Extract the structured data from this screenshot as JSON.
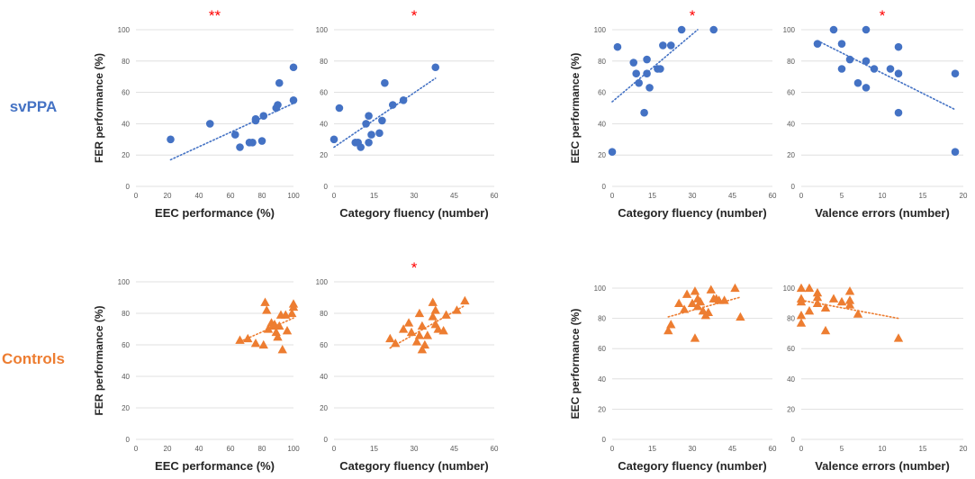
{
  "row_labels": [
    {
      "text": "svPPA",
      "color": "#4472c4"
    },
    {
      "text": "Controls",
      "color": "#ed7d31"
    }
  ],
  "colors": {
    "svPPA": "#4472c4",
    "Controls": "#ed7d31",
    "significance": "#ff0000",
    "grid": "#d9d9d9"
  },
  "chart_data": [
    {
      "type": "scatter",
      "group": "svPPA",
      "marker": "circle",
      "significance": "**",
      "xlabel": "EEC performance (%)",
      "ylabel": "FER performance (%)",
      "xlim": [
        0,
        100
      ],
      "xticks": [
        "0",
        "20",
        "40",
        "60",
        "80",
        "100"
      ],
      "ylim": [
        0,
        100
      ],
      "yticks": [
        "0",
        "20",
        "40",
        "60",
        "80",
        "100"
      ],
      "trendline": [
        [
          22,
          17
        ],
        [
          100,
          53
        ]
      ],
      "x": [
        22,
        47,
        63,
        66,
        72,
        74,
        76,
        76,
        80,
        81,
        89,
        90,
        91,
        100,
        100
      ],
      "y": [
        30,
        40,
        33,
        25,
        28,
        28,
        42,
        43,
        29,
        45,
        50,
        52,
        66,
        55,
        76
      ]
    },
    {
      "type": "scatter",
      "group": "svPPA",
      "marker": "circle",
      "significance": "*",
      "xlabel": "Category fluency (number)",
      "ylabel": "",
      "xlim": [
        0,
        60
      ],
      "xticks": [
        "0",
        "15",
        "30",
        "45",
        "60"
      ],
      "ylim": [
        0,
        100
      ],
      "yticks": [
        "0",
        "20",
        "40",
        "60",
        "80",
        "100"
      ],
      "trendline": [
        [
          0,
          25
        ],
        [
          38,
          69
        ]
      ],
      "x": [
        0,
        2,
        8,
        9,
        10,
        12,
        13,
        13,
        14,
        17,
        18,
        19,
        22,
        26,
        38
      ],
      "y": [
        30,
        50,
        28,
        28,
        25,
        40,
        45,
        28,
        33,
        34,
        42,
        66,
        52,
        55,
        76
      ]
    },
    {
      "type": "scatter",
      "group": "svPPA",
      "marker": "circle",
      "significance": "*",
      "xlabel": "Category fluency (number)",
      "ylabel": "EEC performance (%)",
      "xlim": [
        0,
        60
      ],
      "xticks": [
        "0",
        "15",
        "30",
        "45",
        "60"
      ],
      "ylim": [
        0,
        100
      ],
      "yticks": [
        "0",
        "20",
        "40",
        "60",
        "80",
        "100"
      ],
      "trendline": [
        [
          0,
          54
        ],
        [
          32,
          100
        ]
      ],
      "x": [
        0,
        2,
        8,
        9,
        10,
        12,
        13,
        13,
        14,
        17,
        18,
        19,
        22,
        26,
        38
      ],
      "y": [
        22,
        89,
        79,
        72,
        66,
        47,
        81,
        72,
        63,
        75,
        75,
        90,
        90,
        100,
        100
      ]
    },
    {
      "type": "scatter",
      "group": "svPPA",
      "marker": "circle",
      "significance": "*",
      "xlabel": "Valence errors (number)",
      "ylabel": "",
      "xlim": [
        0,
        20
      ],
      "xticks": [
        "0",
        "5",
        "10",
        "15",
        "20"
      ],
      "ylim": [
        0,
        100
      ],
      "yticks": [
        "0",
        "20",
        "40",
        "60",
        "80",
        "100"
      ],
      "trendline": [
        [
          2,
          93
        ],
        [
          19,
          49
        ]
      ],
      "x": [
        2,
        4,
        5,
        5,
        6,
        7,
        8,
        8,
        8,
        9,
        11,
        12,
        12,
        12,
        19,
        19
      ],
      "y": [
        91,
        100,
        91,
        75,
        81,
        66,
        100,
        80,
        63,
        75,
        75,
        89,
        72,
        47,
        72,
        22
      ]
    },
    {
      "type": "scatter",
      "group": "Controls",
      "marker": "triangle",
      "significance": "",
      "xlabel": "EEC performance (%)",
      "ylabel": "FER performance (%)",
      "xlim": [
        0,
        100
      ],
      "xticks": [
        "0",
        "20",
        "40",
        "60",
        "80",
        "100"
      ],
      "ylim": [
        0,
        100
      ],
      "yticks": [
        "0",
        "20",
        "40",
        "60",
        "80",
        "100"
      ],
      "trendline": [
        [
          66,
          62
        ],
        [
          100,
          77
        ]
      ],
      "x": [
        66,
        71,
        76,
        81,
        82,
        83,
        84,
        86,
        87,
        88,
        89,
        90,
        91,
        92,
        93,
        95,
        96,
        99,
        100,
        100
      ],
      "y": [
        63,
        64,
        61,
        60,
        87,
        82,
        70,
        74,
        72,
        73,
        68,
        65,
        72,
        79,
        57,
        79,
        69,
        80,
        86,
        84
      ]
    },
    {
      "type": "scatter",
      "group": "Controls",
      "marker": "triangle",
      "significance": "*",
      "xlabel": "Category fluency (number)",
      "ylabel": "",
      "xlim": [
        0,
        60
      ],
      "xticks": [
        "0",
        "15",
        "30",
        "45",
        "60"
      ],
      "ylim": [
        0,
        100
      ],
      "yticks": [
        "0",
        "20",
        "40",
        "60",
        "80",
        "100"
      ],
      "trendline": [
        [
          21,
          58
        ],
        [
          49,
          85
        ]
      ],
      "x": [
        21,
        23,
        26,
        28,
        29,
        31,
        32,
        32,
        33,
        33,
        34,
        35,
        37,
        37,
        38,
        38,
        39,
        41,
        42,
        46,
        49
      ],
      "y": [
        64,
        61,
        70,
        74,
        68,
        62,
        66,
        80,
        57,
        72,
        60,
        66,
        87,
        78,
        73,
        82,
        70,
        69,
        79,
        82,
        88
      ]
    },
    {
      "type": "scatter",
      "group": "Controls",
      "marker": "triangle",
      "significance": "",
      "xlabel": "Category fluency (number)",
      "ylabel": "EEC performance (%)",
      "xlim": [
        0,
        60
      ],
      "xticks": [
        "0",
        "15",
        "30",
        "45",
        "60"
      ],
      "ylim": [
        0,
        100
      ],
      "yticks": [
        "0",
        "20",
        "40",
        "60",
        "80",
        "100"
      ],
      "trendline": [
        [
          21,
          81
        ],
        [
          48,
          94
        ]
      ],
      "x": [
        21,
        22,
        25,
        27,
        28,
        30,
        31,
        31,
        32,
        32,
        33,
        34,
        35,
        36,
        37,
        38,
        39,
        40,
        42,
        46,
        48
      ],
      "y": [
        72,
        76,
        90,
        86,
        96,
        90,
        67,
        98,
        93,
        88,
        91,
        85,
        82,
        84,
        99,
        93,
        93,
        92,
        92,
        100,
        81
      ]
    },
    {
      "type": "scatter",
      "group": "Controls",
      "marker": "triangle",
      "significance": "",
      "xlabel": "Valence errors (number)",
      "ylabel": "",
      "xlim": [
        0,
        20
      ],
      "xticks": [
        "0",
        "5",
        "10",
        "15",
        "20"
      ],
      "ylim": [
        0,
        100
      ],
      "yticks": [
        "0",
        "20",
        "40",
        "60",
        "80",
        "100"
      ],
      "trendline": [
        [
          0,
          92
        ],
        [
          12,
          80
        ]
      ],
      "x": [
        0,
        0,
        0,
        0,
        0,
        1,
        1,
        2,
        2,
        2,
        3,
        3,
        4,
        5,
        6,
        6,
        6,
        7,
        12
      ],
      "y": [
        100,
        93,
        91,
        82,
        77,
        100,
        85,
        97,
        94,
        90,
        72,
        87,
        93,
        91,
        98,
        92,
        89,
        83,
        67
      ]
    }
  ]
}
